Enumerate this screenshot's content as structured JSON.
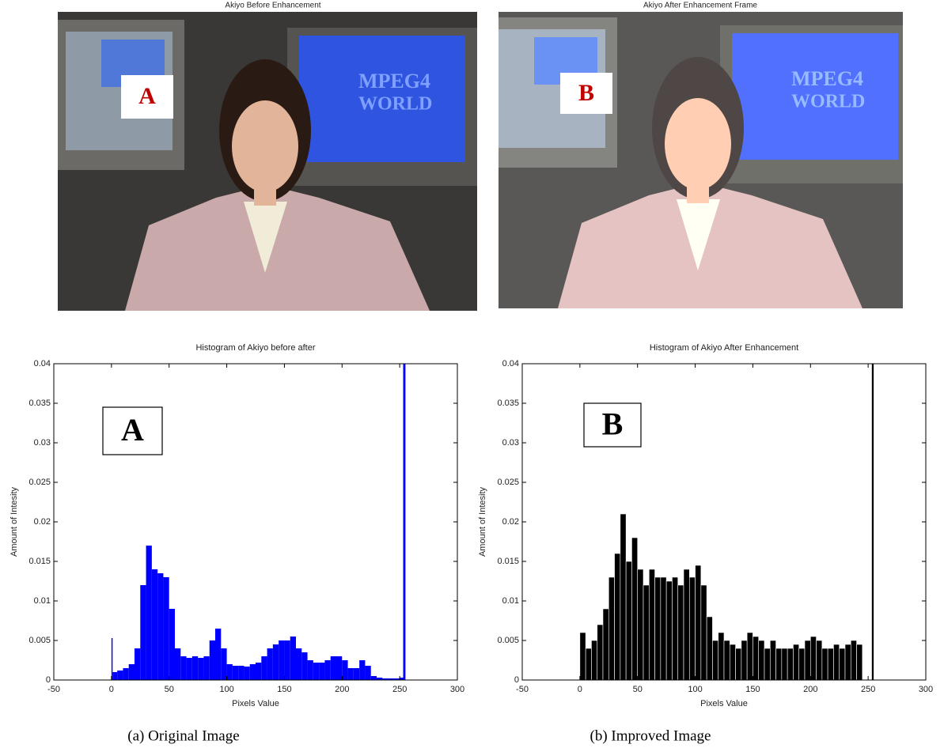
{
  "images": [
    {
      "title": "Akiyo Before Enhancement",
      "label": "A",
      "caption": "(a) Original Image"
    },
    {
      "title": "Akiyo After Enhancement Frame",
      "label": "B",
      "caption": "(b) Improved Image"
    }
  ],
  "chart_data": [
    {
      "type": "histogram",
      "title": "Histogram of Akiyo before after",
      "x_label": "Pixels Value",
      "y_label": "Amount of Intesity",
      "annotation": "A",
      "color": "#0000ff",
      "bins": [
        0,
        1,
        5,
        10,
        15,
        20,
        25,
        30,
        35,
        40,
        45,
        50,
        55,
        60,
        65,
        70,
        75,
        80,
        85,
        90,
        95,
        100,
        105,
        110,
        115,
        120,
        125,
        130,
        135,
        140,
        145,
        150,
        155,
        160,
        165,
        170,
        175,
        180,
        185,
        190,
        195,
        200,
        205,
        210,
        215,
        220,
        225,
        230,
        235,
        240,
        245,
        250,
        253,
        255
      ],
      "values": [
        0.0053,
        0.001,
        0.0012,
        0.0015,
        0.002,
        0.004,
        0.012,
        0.017,
        0.014,
        0.0135,
        0.013,
        0.009,
        0.004,
        0.003,
        0.0028,
        0.003,
        0.0028,
        0.003,
        0.005,
        0.0065,
        0.004,
        0.002,
        0.0018,
        0.0018,
        0.0017,
        0.002,
        0.0022,
        0.003,
        0.004,
        0.0045,
        0.005,
        0.005,
        0.0055,
        0.004,
        0.0035,
        0.0025,
        0.0022,
        0.0022,
        0.0025,
        0.003,
        0.003,
        0.0025,
        0.0015,
        0.0015,
        0.0025,
        0.0018,
        0.0005,
        0.0003,
        0.0002,
        0.0002,
        0.0002,
        0.0003,
        0.04
      ],
      "xlim": [
        -50,
        300
      ],
      "xticks": [
        -50,
        0,
        50,
        100,
        150,
        200,
        250,
        300
      ],
      "ylim": [
        0,
        0.04
      ],
      "yticks": [
        0,
        0.005,
        0.01,
        0.015,
        0.02,
        0.025,
        0.03,
        0.035,
        0.04
      ]
    },
    {
      "type": "histogram",
      "title": "Histogram of Akiyo After Enhancement",
      "x_label": "Pixels Value",
      "y_label": "Amount of Intesity",
      "annotation": "B",
      "color": "#000000",
      "bins": [
        0,
        5,
        10,
        15,
        20,
        25,
        30,
        35,
        40,
        45,
        50,
        55,
        60,
        65,
        70,
        75,
        80,
        85,
        90,
        95,
        100,
        105,
        110,
        115,
        120,
        125,
        130,
        135,
        140,
        145,
        150,
        155,
        160,
        165,
        170,
        175,
        180,
        185,
        190,
        195,
        200,
        205,
        210,
        215,
        220,
        225,
        230,
        235,
        240,
        245,
        253,
        255
      ],
      "values": [
        0.006,
        0.004,
        0.005,
        0.007,
        0.009,
        0.013,
        0.016,
        0.021,
        0.015,
        0.018,
        0.014,
        0.012,
        0.014,
        0.013,
        0.013,
        0.0125,
        0.013,
        0.012,
        0.014,
        0.013,
        0.0145,
        0.012,
        0.008,
        0.005,
        0.006,
        0.005,
        0.0045,
        0.004,
        0.005,
        0.006,
        0.0055,
        0.005,
        0.004,
        0.005,
        0.004,
        0.004,
        0.004,
        0.0045,
        0.004,
        0.005,
        0.0055,
        0.005,
        0.004,
        0.004,
        0.0045,
        0.004,
        0.0045,
        0.005,
        0.0045,
        0,
        0.04
      ],
      "xlim": [
        -50,
        300
      ],
      "xticks": [
        -50,
        0,
        50,
        100,
        150,
        200,
        250,
        300
      ],
      "ylim": [
        0,
        0.04
      ],
      "yticks": [
        0,
        0.005,
        0.01,
        0.015,
        0.02,
        0.025,
        0.03,
        0.035,
        0.04
      ]
    }
  ]
}
